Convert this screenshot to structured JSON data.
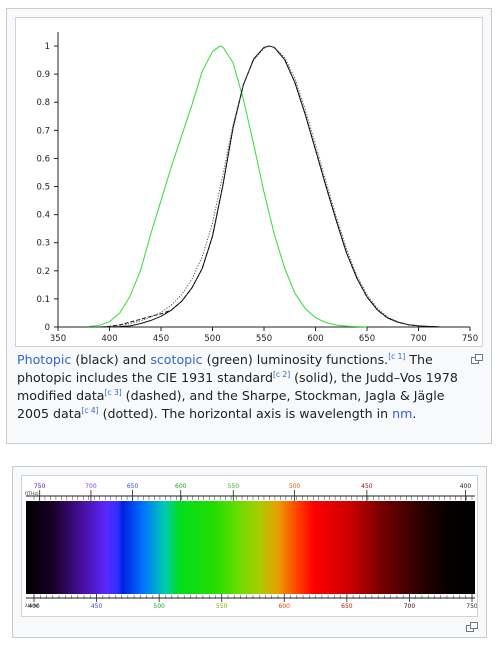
{
  "figure1": {
    "chart_data": {
      "type": "line",
      "title": "",
      "xlabel": "",
      "ylabel": "",
      "xlim": [
        350,
        750
      ],
      "ylim": [
        0,
        1.05
      ],
      "x_ticks": [
        350,
        400,
        450,
        500,
        550,
        600,
        650,
        700,
        750
      ],
      "y_ticks": [
        0,
        0.1,
        0.2,
        0.3,
        0.4,
        0.5,
        0.6,
        0.7,
        0.8,
        0.9,
        1
      ],
      "y_tick_labels": [
        "0",
        "0.1",
        "0.2",
        "0.3",
        "0.4",
        "0.5",
        "0.6",
        "0.7",
        "0.8",
        "0.9",
        "1"
      ],
      "grid": false,
      "legend": "none",
      "series": [
        {
          "color": "#33dd33",
          "style": "solid",
          "x": [
            380,
            390,
            400,
            410,
            420,
            430,
            440,
            450,
            460,
            470,
            480,
            490,
            500,
            507,
            510,
            520,
            530,
            540,
            550,
            560,
            570,
            580,
            590,
            600,
            610,
            620,
            630,
            640,
            650
          ],
          "y": [
            0.002,
            0.006,
            0.019,
            0.05,
            0.11,
            0.2,
            0.33,
            0.45,
            0.57,
            0.68,
            0.79,
            0.91,
            0.98,
            1.0,
            0.997,
            0.94,
            0.81,
            0.65,
            0.48,
            0.33,
            0.21,
            0.12,
            0.066,
            0.033,
            0.016,
            0.007,
            0.003,
            0.0012,
            0.0005
          ]
        },
        {
          "color": "#111111",
          "style": "solid",
          "x": [
            380,
            390,
            400,
            410,
            420,
            430,
            440,
            450,
            460,
            470,
            480,
            490,
            500,
            510,
            520,
            530,
            540,
            550,
            555,
            560,
            570,
            580,
            590,
            600,
            610,
            620,
            630,
            640,
            650,
            660,
            670,
            680,
            690,
            700,
            710,
            720
          ],
          "y": [
            0.0,
            0.0001,
            0.0004,
            0.0012,
            0.004,
            0.012,
            0.023,
            0.038,
            0.06,
            0.091,
            0.139,
            0.208,
            0.323,
            0.503,
            0.71,
            0.862,
            0.954,
            0.995,
            1.0,
            0.995,
            0.952,
            0.87,
            0.757,
            0.631,
            0.503,
            0.381,
            0.265,
            0.175,
            0.107,
            0.061,
            0.032,
            0.017,
            0.0082,
            0.0041,
            0.0021,
            0.001
          ]
        },
        {
          "color": "#111111",
          "style": "dashed",
          "x": [
            380,
            390,
            400,
            410,
            420,
            430,
            440,
            450,
            460,
            470,
            480,
            490,
            500,
            510,
            520,
            530,
            540,
            550,
            555,
            560,
            570,
            580,
            590,
            600,
            610,
            620,
            630,
            640,
            650,
            660,
            670,
            680,
            690,
            700
          ],
          "y": [
            0.0,
            0.0,
            0.0028,
            0.0074,
            0.0175,
            0.0273,
            0.0379,
            0.0468,
            0.06,
            0.091,
            0.139,
            0.208,
            0.323,
            0.503,
            0.71,
            0.862,
            0.954,
            0.995,
            1.0,
            0.995,
            0.952,
            0.87,
            0.757,
            0.631,
            0.503,
            0.381,
            0.265,
            0.175,
            0.107,
            0.061,
            0.032,
            0.017,
            0.0082,
            0.0041
          ]
        },
        {
          "color": "#555555",
          "style": "dotted",
          "x": [
            380,
            390,
            400,
            410,
            420,
            430,
            440,
            450,
            460,
            470,
            480,
            490,
            500,
            510,
            520,
            530,
            540,
            550,
            555,
            560,
            570,
            580,
            590,
            600,
            610,
            620,
            630,
            640,
            650,
            660,
            670,
            680,
            690,
            700
          ],
          "y": [
            0.0,
            0.0004,
            0.0015,
            0.005,
            0.012,
            0.022,
            0.035,
            0.052,
            0.078,
            0.115,
            0.17,
            0.25,
            0.37,
            0.54,
            0.72,
            0.865,
            0.95,
            0.992,
            1.0,
            0.996,
            0.96,
            0.885,
            0.775,
            0.65,
            0.52,
            0.395,
            0.28,
            0.185,
            0.115,
            0.066,
            0.036,
            0.019,
            0.009,
            0.0045
          ]
        }
      ]
    },
    "caption": {
      "link1": "Photopic",
      "t1": " (black) and ",
      "link2": "scotopic",
      "t2": " (green) luminosity functions.",
      "ref1": "[c 1]",
      "t3": " The photopic includes the CIE 1931 standard",
      "ref2": "[c 2]",
      "t4": " (solid), the Judd–Vos 1978 modified data",
      "ref3": "[c 3]",
      "t5": " (dashed), and the Sharpe, Stockman, Jagla & Jägle 2005 data",
      "ref4": "[c 4]",
      "t6": " (dotted). The horizontal axis is wavelength in ",
      "link3": "nm",
      "t7": "."
    }
  },
  "figure2": {
    "top_axis_label": "f(THz)",
    "top_ticks": [
      "750",
      "700",
      "650",
      "600",
      "550",
      "500",
      "450",
      "400"
    ],
    "top_tick_colors": [
      "#5511aa",
      "#7733ff",
      "#2255ee",
      "#11aa22",
      "#33bb22",
      "#ee5500",
      "#990000",
      "#222222"
    ],
    "bottom_axis_label": "λ(nm)",
    "bottom_ticks": [
      "400",
      "450",
      "500",
      "550",
      "600",
      "650",
      "700",
      "750"
    ],
    "bottom_tick_colors": [
      "#222222",
      "#3344ee",
      "#11aa22",
      "#88aa00",
      "#ee4400",
      "#991100",
      "#330000",
      "#222222"
    ],
    "enlarge_icon": "enlarge-icon"
  }
}
